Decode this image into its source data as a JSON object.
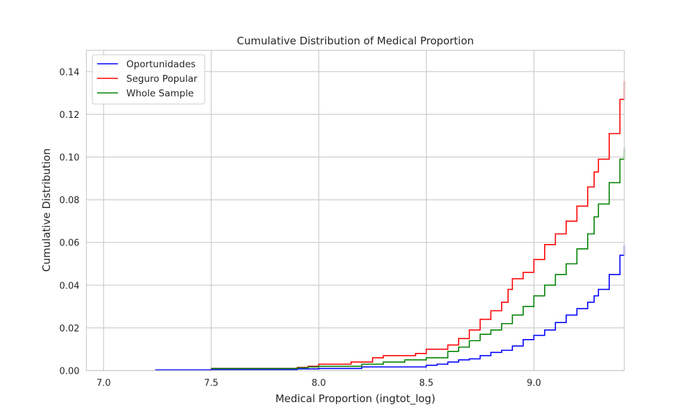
{
  "chart_data": {
    "type": "line",
    "title": "Cumulative Distribution of Medical Proportion",
    "xlabel": "Medical Proportion (ingtot_log)",
    "ylabel": "Cumulative Distribution",
    "xlim": [
      6.92,
      9.42
    ],
    "ylim": [
      0.0,
      0.15
    ],
    "xticks": [
      7.0,
      7.5,
      8.0,
      8.5,
      9.0
    ],
    "xtick_labels": [
      "7.0",
      "7.5",
      "8.0",
      "8.5",
      "9.0"
    ],
    "yticks": [
      0.0,
      0.02,
      0.04,
      0.06,
      0.08,
      0.1,
      0.12,
      0.14
    ],
    "ytick_labels": [
      "0.00",
      "0.02",
      "0.04",
      "0.06",
      "0.08",
      "0.10",
      "0.12",
      "0.14"
    ],
    "grid": true,
    "legend_position": "top-left",
    "step": true,
    "series": [
      {
        "name": "Oportunidades",
        "color": "#0000ff",
        "x": [
          7.24,
          7.5,
          7.9,
          8.0,
          8.2,
          8.5,
          8.55,
          8.6,
          8.65,
          8.7,
          8.75,
          8.8,
          8.85,
          8.9,
          8.95,
          9.0,
          9.05,
          9.1,
          9.15,
          9.2,
          9.25,
          9.28,
          9.3,
          9.35,
          9.4,
          9.42
        ],
        "y": [
          0.0003,
          0.0005,
          0.0008,
          0.001,
          0.0017,
          0.0025,
          0.003,
          0.004,
          0.005,
          0.0055,
          0.007,
          0.0085,
          0.0095,
          0.0115,
          0.0145,
          0.0165,
          0.019,
          0.0225,
          0.026,
          0.029,
          0.032,
          0.035,
          0.038,
          0.045,
          0.054,
          0.0585
        ]
      },
      {
        "name": "Seguro Popular",
        "color": "#ff0000",
        "x": [
          7.5,
          7.9,
          7.95,
          8.0,
          8.15,
          8.25,
          8.3,
          8.45,
          8.5,
          8.6,
          8.65,
          8.7,
          8.75,
          8.8,
          8.85,
          8.88,
          8.9,
          8.95,
          9.0,
          9.05,
          9.1,
          9.15,
          9.2,
          9.25,
          9.28,
          9.3,
          9.35,
          9.4,
          9.42
        ],
        "y": [
          0.001,
          0.0015,
          0.002,
          0.003,
          0.004,
          0.006,
          0.007,
          0.008,
          0.01,
          0.012,
          0.015,
          0.019,
          0.024,
          0.028,
          0.032,
          0.038,
          0.043,
          0.046,
          0.052,
          0.059,
          0.064,
          0.07,
          0.077,
          0.086,
          0.093,
          0.099,
          0.111,
          0.127,
          0.1355
        ]
      },
      {
        "name": "Whole Sample",
        "color": "#008000",
        "x": [
          7.5,
          7.9,
          7.95,
          8.0,
          8.2,
          8.3,
          8.4,
          8.5,
          8.6,
          8.65,
          8.7,
          8.75,
          8.8,
          8.85,
          8.9,
          8.95,
          9.0,
          9.05,
          9.1,
          9.15,
          9.2,
          9.25,
          9.28,
          9.3,
          9.35,
          9.4,
          9.42
        ],
        "y": [
          0.001,
          0.0013,
          0.0017,
          0.002,
          0.003,
          0.004,
          0.005,
          0.006,
          0.009,
          0.011,
          0.014,
          0.017,
          0.019,
          0.022,
          0.026,
          0.03,
          0.035,
          0.04,
          0.045,
          0.05,
          0.057,
          0.064,
          0.072,
          0.078,
          0.088,
          0.099,
          0.104
        ]
      }
    ]
  }
}
